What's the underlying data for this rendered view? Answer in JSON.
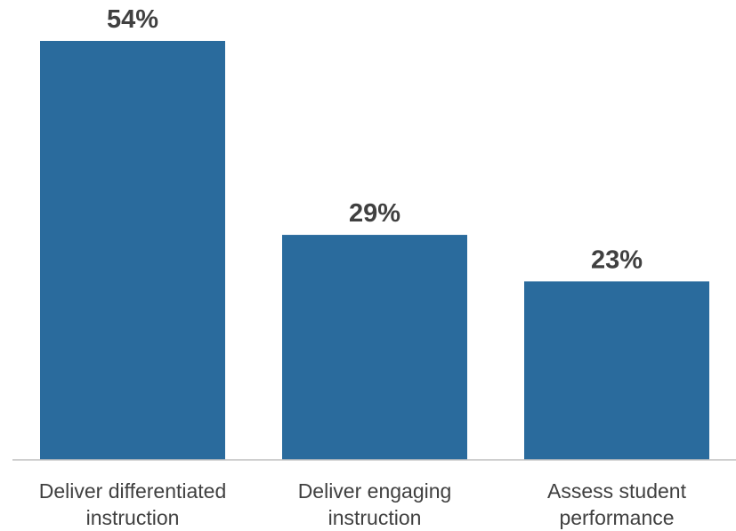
{
  "chart_data": {
    "type": "bar",
    "categories": [
      [
        "Deliver differentiated",
        "instruction"
      ],
      [
        "Deliver engaging",
        "instruction"
      ],
      [
        "Assess student",
        "performance"
      ]
    ],
    "values": [
      54,
      29,
      23
    ],
    "data_labels": [
      "54%",
      "29%",
      "23%"
    ],
    "ylim": [
      0,
      54
    ],
    "grid": false,
    "legend": "none",
    "bar_color": "#2a6b9d",
    "axis_color": "#bfbfbf",
    "text_color": "#404040"
  }
}
